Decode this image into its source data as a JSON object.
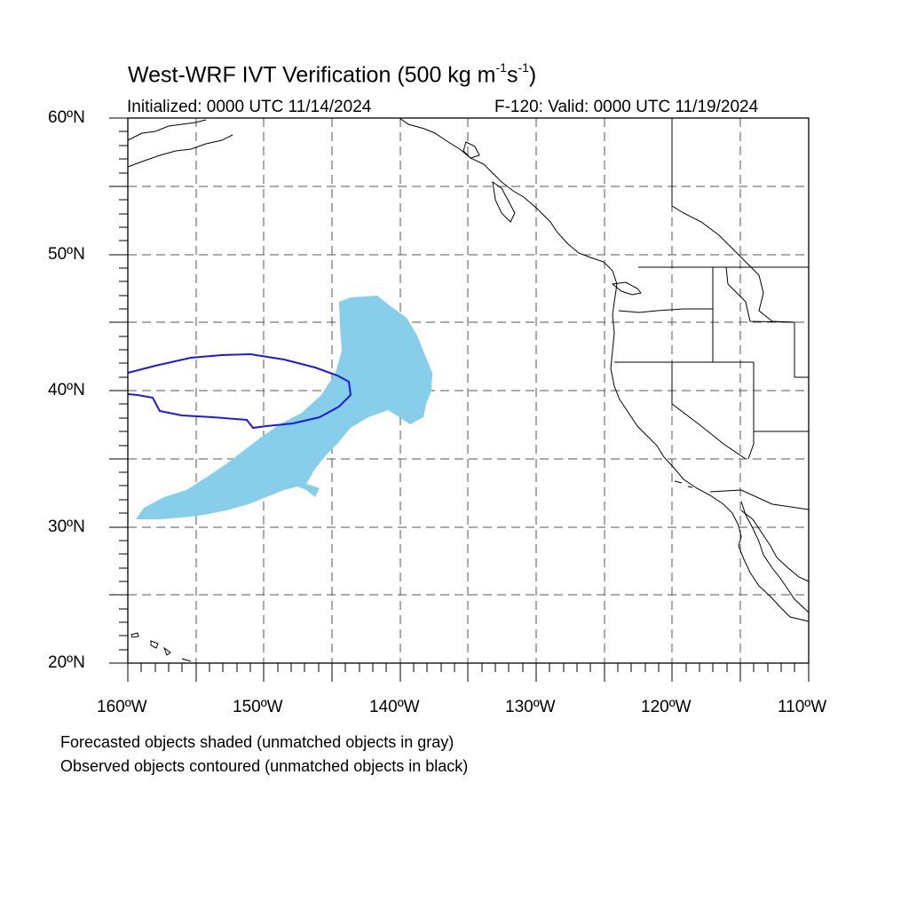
{
  "title": {
    "main": "West-WRF IVT Verification",
    "units_prefix": "(500 kg m",
    "exp1": "-1",
    "mid": "s",
    "exp2": "-1",
    "close": ")"
  },
  "subtitle": {
    "left": "Initialized: 0000 UTC 11/14/2024",
    "right": "F-120: Valid: 0000 UTC 11/19/2024"
  },
  "axes": {
    "lat_labels": [
      "60ºN",
      "50ºN",
      "40ºN",
      "30ºN",
      "20ºN"
    ],
    "lon_labels": [
      "160ºW",
      "150ºW",
      "140ºW",
      "130ºW",
      "120ºW",
      "110ºW"
    ],
    "lat_range": [
      20,
      60
    ],
    "lon_range": [
      -160,
      -110
    ],
    "grid": "dashed, every 5 degrees"
  },
  "legend": {
    "line1": "Forecasted objects shaded (unmatched objects in gray)",
    "line2": "Observed objects contoured (unmatched objects in black)"
  },
  "colors": {
    "forecast_fill": "#87CEEB",
    "observed_contour": "#1a1ae6",
    "coastline": "#000000",
    "grid": "#555555"
  }
}
